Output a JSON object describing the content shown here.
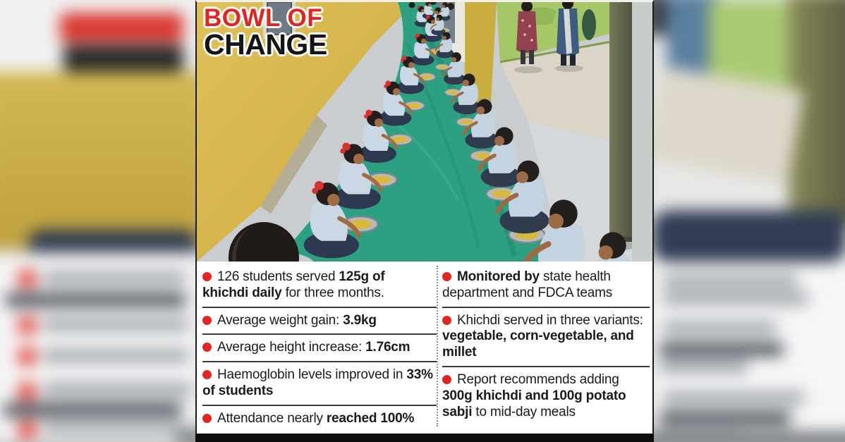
{
  "headline": {
    "line1": "BOWL OF",
    "line2": "CHANGE"
  },
  "colors": {
    "accent_red": "#e2251f",
    "headline_black": "#151515",
    "body_text": "#1b1b1b",
    "panel_bg": "#ffffff",
    "separator": "#3a3a3a",
    "carpet_green": "#2da082",
    "wall_yellow": "#d4b44a"
  },
  "facts": {
    "left": [
      {
        "segments": [
          {
            "t": "126 students served ",
            "b": false
          },
          {
            "t": "125g of khichdi daily",
            "b": true
          },
          {
            "t": " for three months.",
            "b": false
          }
        ]
      },
      {
        "segments": [
          {
            "t": "Average weight gain: ",
            "b": false
          },
          {
            "t": "3.9kg",
            "b": true
          }
        ]
      },
      {
        "segments": [
          {
            "t": "Average height increase: ",
            "b": false
          },
          {
            "t": "1.76cm",
            "b": true
          }
        ]
      },
      {
        "segments": [
          {
            "t": "Haemoglobin levels improved in ",
            "b": false
          },
          {
            "t": "33% of students",
            "b": true
          }
        ]
      },
      {
        "segments": [
          {
            "t": "Attendance nearly ",
            "b": false
          },
          {
            "t": "reached 100%",
            "b": true
          }
        ]
      }
    ],
    "right": [
      {
        "segments": [
          {
            "t": "Monitored by",
            "b": true
          },
          {
            "t": " state health department and FDCA teams",
            "b": false
          }
        ]
      },
      {
        "segments": [
          {
            "t": "Khichdi served in three variants: ",
            "b": false
          },
          {
            "t": "vegetable, corn-vegetable, and millet",
            "b": true
          }
        ]
      },
      {
        "segments": [
          {
            "t": "Report recommends adding ",
            "b": false
          },
          {
            "t": "300g khichdi and 100g potato sabji",
            "b": true
          },
          {
            "t": " to mid-day meals",
            "b": false
          }
        ]
      }
    ]
  }
}
